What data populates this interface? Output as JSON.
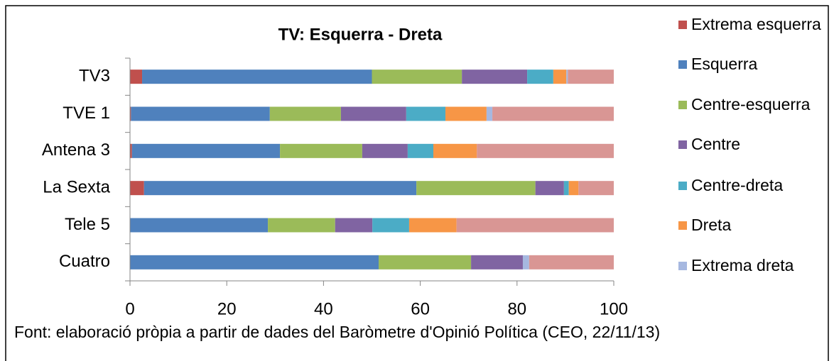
{
  "chart_data": {
    "type": "stacked-barh",
    "title": "TV: Esquerra - Dreta",
    "categories": [
      "TV3",
      "TVE 1",
      "Antena 3",
      "La Sexta",
      "Tele 5",
      "Cuatro"
    ],
    "series": [
      {
        "name": "Extrema esquerra",
        "color": "#c0504d",
        "values": [
          2.5,
          0.2,
          0.4,
          2.9,
          0,
          0
        ]
      },
      {
        "name": "Esquerra",
        "color": "#4f81bd",
        "values": [
          47.5,
          28.7,
          30.6,
          56.3,
          28.5,
          51.4
        ]
      },
      {
        "name": "Centre-esquerra",
        "color": "#9bbb59",
        "values": [
          18.6,
          14.7,
          17.0,
          24.6,
          13.9,
          19.1
        ]
      },
      {
        "name": "Centre",
        "color": "#8064a2",
        "values": [
          13.5,
          13.5,
          9.4,
          5.9,
          7.7,
          10.7
        ]
      },
      {
        "name": "Centre-dreta",
        "color": "#4bacc6",
        "values": [
          5.4,
          8.1,
          5.3,
          1.0,
          7.6,
          0
        ]
      },
      {
        "name": "Dreta",
        "color": "#f79646",
        "values": [
          2.7,
          8.5,
          9.0,
          2.0,
          9.8,
          0
        ]
      },
      {
        "name": "Extrema dreta",
        "color": "#a6b8e0",
        "values": [
          0.3,
          1.2,
          0,
          0,
          0,
          1.3
        ]
      },
      {
        "color": "#d99694",
        "values": [
          9.5,
          25.1,
          28.3,
          7.3,
          32.5,
          17.5
        ]
      }
    ],
    "xlim": [
      0,
      100
    ],
    "xticks": [
      0,
      20,
      40,
      60,
      80,
      100
    ],
    "note": "Font: elaboració pròpia a partir de dades del Baròmetre d'Opinió Política (CEO, 22/11/13)"
  }
}
